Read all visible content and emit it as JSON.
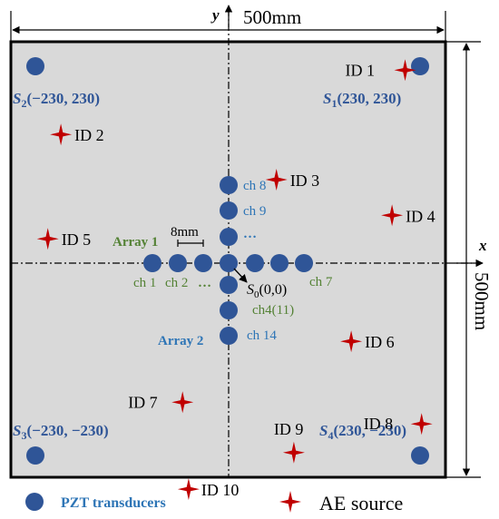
{
  "dimensions": {
    "top": "500mm",
    "right": "500mm"
  },
  "axes": {
    "y": "y",
    "x": "x"
  },
  "sensors": [
    {
      "name": "S",
      "sub": "1",
      "coords": "(230, 230)"
    },
    {
      "name": "S",
      "sub": "2",
      "coords": "(−230, 230)"
    },
    {
      "name": "S",
      "sub": "3",
      "coords": "(−230, −230)"
    },
    {
      "name": "S",
      "sub": "4",
      "coords": "(230, −230)"
    }
  ],
  "origin": {
    "name": "S",
    "sub": "0",
    "coords": "(0,0)"
  },
  "arrays": {
    "array1": "Array 1",
    "array2": "Array 2",
    "spacing": "8mm"
  },
  "channels": {
    "ch1": "ch 1",
    "ch2": "ch 2",
    "ch7": "ch 7",
    "ch8": "ch 8",
    "ch9": "ch 9",
    "ch4": "ch4(11)",
    "ch14": "ch 14",
    "dots_h": "…",
    "dots_v": "…"
  },
  "sources": [
    {
      "id": "ID 1",
      "x": 203,
      "y": 222
    },
    {
      "id": "ID 2",
      "x": -193,
      "y": 148
    },
    {
      "id": "ID 3",
      "x": 55,
      "y": 96
    },
    {
      "id": "ID 4",
      "x": 188,
      "y": 55
    },
    {
      "id": "ID 5",
      "x": -208,
      "y": 28
    },
    {
      "id": "ID 6",
      "x": 141,
      "y": -90
    },
    {
      "id": "ID 7",
      "x": -53,
      "y": -160
    },
    {
      "id": "ID 8",
      "x": 222,
      "y": -185
    },
    {
      "id": "ID 9",
      "x": 75,
      "y": -218
    },
    {
      "id": "ID 10",
      "x": -46,
      "y": -260
    }
  ],
  "legend": {
    "transducer": "PZT transducers",
    "source": "AE source"
  },
  "colors": {
    "plate": "#d9d9d9",
    "sensor": "#2f5597",
    "source": "#c00000",
    "array_label": "#548235",
    "channel_blue": "#2e75b6"
  }
}
